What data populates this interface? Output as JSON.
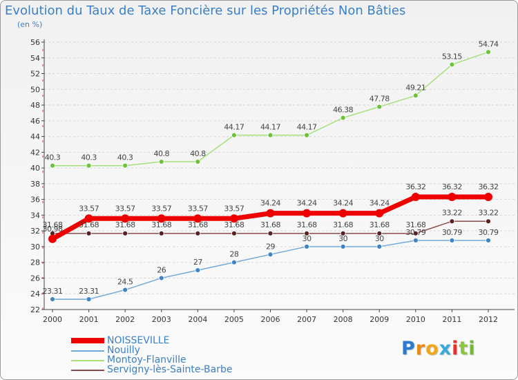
{
  "colors": {
    "NOISSEVILLE": "#ee0000",
    "Nouilly": "#5b9bd5",
    "Montoy-Flanville": "#99dd66",
    "Servigny-lès-Sainte-Barbe": "#7a2a2a",
    "text": "#3b7fc4",
    "axis": "#444444",
    "grid": "#d6d6d6"
  },
  "logo": {
    "letters": [
      "P",
      "r",
      "o",
      "x",
      "i",
      "t",
      "i"
    ],
    "colors": [
      "#2a7ad1",
      "#e88a1a",
      "#f0a81a",
      "#33aadd",
      "#e0322f",
      "#8cc63f",
      "#6fb83a"
    ]
  },
  "chart_data": {
    "type": "line",
    "title": "Evolution du Taux de Taxe Foncière sur les Propriétés Non Bâties",
    "subtitle": "(en %)",
    "xlabel": "",
    "ylabel": "",
    "x": [
      2000,
      2001,
      2002,
      2003,
      2004,
      2005,
      2006,
      2007,
      2008,
      2009,
      2010,
      2011,
      2012
    ],
    "x_tick_labels": [
      "2000",
      "2001",
      "2002",
      "2003",
      "2004",
      "2005",
      "2006",
      "2007",
      "2008",
      "2009",
      "2010",
      "2011",
      "2012"
    ],
    "ylim": [
      22,
      56
    ],
    "y_ticks": [
      22,
      24,
      26,
      28,
      30,
      32,
      34,
      36,
      38,
      40,
      42,
      44,
      46,
      48,
      50,
      52,
      54,
      56
    ],
    "grid": "horizontal dashed",
    "legend": "bottom-left",
    "series": [
      {
        "name": "NOISSEVILLE",
        "values": [
          30.98,
          33.57,
          33.57,
          33.57,
          33.57,
          33.57,
          34.24,
          34.24,
          34.24,
          34.24,
          36.32,
          36.32,
          36.32
        ],
        "labels": [
          "30.98",
          "33.57",
          "33.57",
          "33.57",
          "33.57",
          "33.57",
          "34.24",
          "34.24",
          "34.24",
          "34.24",
          "36.32",
          "36.32",
          "36.32"
        ]
      },
      {
        "name": "Nouilly",
        "values": [
          23.31,
          23.31,
          24.5,
          26,
          27,
          28,
          29,
          30,
          30,
          30,
          30.79,
          30.79,
          30.79
        ],
        "labels": [
          "23.31",
          "23.31",
          "24.5",
          "26",
          "27",
          "28",
          "29",
          "30",
          "30",
          "30",
          "30.79",
          "30.79",
          "30.79"
        ]
      },
      {
        "name": "Montoy-Flanville",
        "values": [
          40.3,
          40.3,
          40.3,
          40.8,
          40.8,
          44.17,
          44.17,
          44.17,
          46.38,
          47.78,
          49.21,
          53.15,
          54.74
        ],
        "labels": [
          "40.3",
          "40.3",
          "40.3",
          "40.8",
          "40.8",
          "44.17",
          "44.17",
          "44.17",
          "46.38",
          "47.78",
          "49.21",
          "53.15",
          "54.74"
        ]
      },
      {
        "name": "Servigny-lès-Sainte-Barbe",
        "values": [
          31.68,
          31.68,
          31.68,
          31.68,
          31.68,
          31.68,
          31.68,
          31.68,
          31.68,
          31.68,
          31.68,
          33.22,
          33.22
        ],
        "labels": [
          "31.68",
          "31.68",
          "31.68",
          "31.68",
          "31.68",
          "31.68",
          "31.68",
          "31.68",
          "31.68",
          "31.68",
          "31.68",
          "33.22",
          "33.22"
        ]
      }
    ]
  }
}
